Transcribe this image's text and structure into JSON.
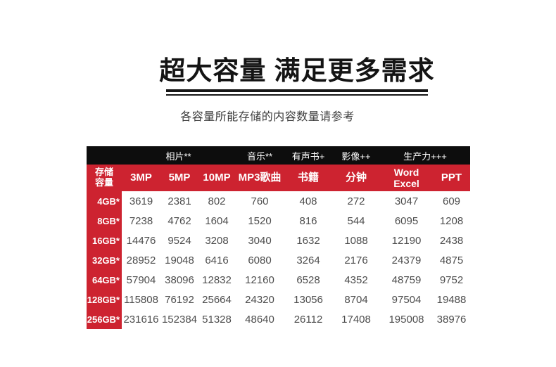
{
  "header": {
    "title": "超大容量 满足更多需求",
    "subtitle": "各容量所能存储的内容数量请参考"
  },
  "colors": {
    "brand_red": "#cd2330",
    "header_black": "#0d0d0d",
    "value_text": "#4d4d4d",
    "title_text": "#141414"
  },
  "chart_data": {
    "type": "table",
    "title": "超大容量 满足更多需求",
    "subtitle": "各容量所能存储的内容数量请参考",
    "column_groups": [
      {
        "label": "",
        "span": 1
      },
      {
        "label": "相片**",
        "span": 3
      },
      {
        "label": "音乐**",
        "span": 1
      },
      {
        "label": "有声书+",
        "span": 1
      },
      {
        "label": "影像++",
        "span": 1
      },
      {
        "label": "生产力+++",
        "span": 2
      }
    ],
    "columns": [
      "存储\n容量",
      "3MP",
      "5MP",
      "10MP",
      "MP3歌曲",
      "书籍",
      "分钟",
      "Word\nExcel",
      "PPT"
    ],
    "rows": [
      {
        "capacity": "4GB*",
        "values": [
          "3619",
          "2381",
          "802",
          "760",
          "408",
          "272",
          "3047",
          "609"
        ]
      },
      {
        "capacity": "8GB*",
        "values": [
          "7238",
          "4762",
          "1604",
          "1520",
          "816",
          "544",
          "6095",
          "1208"
        ]
      },
      {
        "capacity": "16GB*",
        "values": [
          "14476",
          "9524",
          "3208",
          "3040",
          "1632",
          "1088",
          "12190",
          "2438"
        ]
      },
      {
        "capacity": "32GB*",
        "values": [
          "28952",
          "19048",
          "6416",
          "6080",
          "3264",
          "2176",
          "24379",
          "4875"
        ]
      },
      {
        "capacity": "64GB*",
        "values": [
          "57904",
          "38096",
          "12832",
          "12160",
          "6528",
          "4352",
          "48759",
          "9752"
        ]
      },
      {
        "capacity": "128GB*",
        "values": [
          "115808",
          "76192",
          "25664",
          "24320",
          "13056",
          "8704",
          "97504",
          "19488"
        ]
      },
      {
        "capacity": "256GB*",
        "values": [
          "231616",
          "152384",
          "51328",
          "48640",
          "26112",
          "17408",
          "195008",
          "38976"
        ]
      }
    ]
  }
}
